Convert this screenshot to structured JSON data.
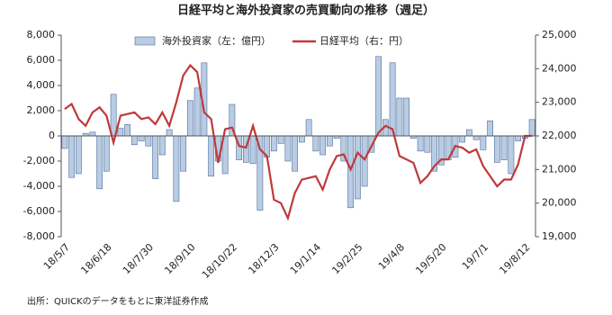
{
  "chart_data": {
    "type": "bar",
    "title": "日経平均と海外投資家の売買動向の推移（週足）",
    "source": "出所：QUICKのデータをもとに東洋証券作成",
    "categories": [
      "18/5/7",
      null,
      null,
      null,
      null,
      null,
      "18/6/18",
      null,
      null,
      null,
      null,
      null,
      "18/7/30",
      null,
      null,
      null,
      null,
      null,
      "18/9/10",
      null,
      null,
      null,
      null,
      null,
      "18/10/22",
      null,
      null,
      null,
      null,
      null,
      "18/12/3",
      null,
      null,
      null,
      null,
      null,
      "19/1/14",
      null,
      null,
      null,
      null,
      null,
      "19/2/25",
      null,
      null,
      null,
      null,
      null,
      "19/4/8",
      null,
      null,
      null,
      null,
      null,
      "19/5/20",
      null,
      null,
      null,
      null,
      null,
      "19/7/1",
      null,
      null,
      null,
      null,
      null,
      "19/8/12",
      null
    ],
    "series": [
      {
        "name": "海外投資家（左：億円）",
        "type": "bar",
        "color": "#b8cce4",
        "values": [
          -1000,
          -3300,
          -3000,
          200,
          300,
          -4200,
          -2800,
          3300,
          600,
          900,
          -700,
          -400,
          -800,
          -3400,
          -1500,
          500,
          -5200,
          -2800,
          2800,
          3800,
          5800,
          -3200,
          -2000,
          -3000,
          2500,
          -1900,
          -2100,
          -2200,
          -5900,
          -1700,
          -1200,
          -600,
          -2000,
          -2800,
          -500,
          1300,
          -1200,
          -1500,
          -800,
          -200,
          -2000,
          -5700,
          -5000,
          -4000,
          -1300,
          6300,
          1300,
          5800,
          3000,
          3000,
          -200,
          -1200,
          -1300,
          -2800,
          -2300,
          -1900,
          -1700,
          -500,
          500,
          -300,
          -1100,
          1200,
          -2100,
          -1900,
          -3000,
          -400,
          -200,
          1300
        ]
      },
      {
        "name": "日経平均（右：円）",
        "type": "line",
        "axis": "y2",
        "color": "#c0393b",
        "values": [
          22800,
          22950,
          22500,
          22300,
          22700,
          22850,
          22600,
          21800,
          22600,
          22650,
          22700,
          22500,
          22550,
          22350,
          22700,
          22300,
          23000,
          23800,
          24100,
          23900,
          22700,
          22500,
          21200,
          22200,
          22250,
          21700,
          21650,
          22300,
          21600,
          21400,
          20100,
          20000,
          19550,
          20300,
          20700,
          20750,
          20800,
          20400,
          21000,
          21400,
          21450,
          21000,
          21500,
          21300,
          21700,
          22100,
          22300,
          22200,
          21400,
          21300,
          21200,
          20600,
          20800,
          21100,
          21300,
          21300,
          21700,
          21650,
          21500,
          21600,
          21100,
          20800,
          20500,
          20700,
          20700,
          21150,
          22000,
          22000
        ]
      }
    ],
    "ylim": [
      -8000,
      8000
    ],
    "yticks": [
      {
        "value": -8000,
        "label": "-8,000"
      },
      {
        "value": -6000,
        "label": "-6,000"
      },
      {
        "value": -4000,
        "label": "-4,000"
      },
      {
        "value": -2000,
        "label": "-2,000"
      },
      0,
      {
        "value": 2000,
        "label": "2,000"
      },
      {
        "value": 4000,
        "label": "4,000"
      },
      {
        "value": 6000,
        "label": "6,000"
      },
      {
        "value": 8000,
        "label": "8,000"
      }
    ],
    "y2lim": [
      19000,
      25000
    ],
    "y2ticks": [
      {
        "value": 19000,
        "label": "19,000"
      },
      {
        "value": 20000,
        "label": "20,000"
      },
      {
        "value": 21000,
        "label": "21,000"
      },
      {
        "value": 22000,
        "label": "22,000"
      },
      {
        "value": 23000,
        "label": "23,000"
      },
      {
        "value": 24000,
        "label": "24,000"
      },
      {
        "value": 25000,
        "label": "25,000"
      }
    ]
  }
}
